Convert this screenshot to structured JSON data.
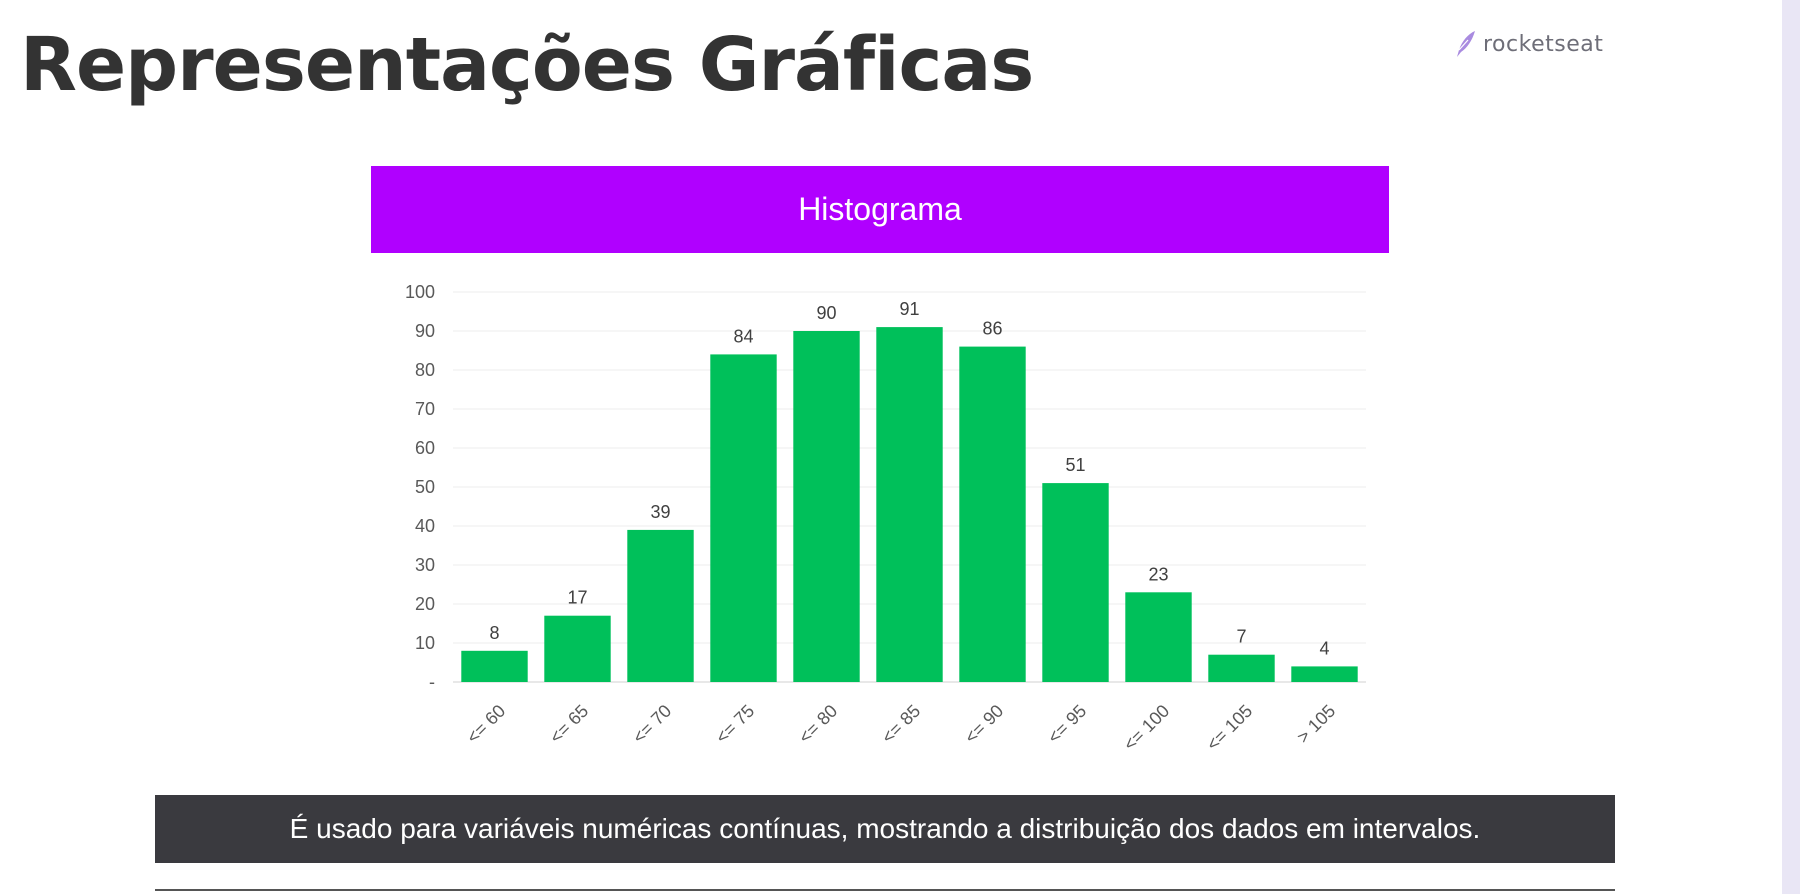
{
  "slide": {
    "title": "Representações Gráficas",
    "brand": "rocketseat",
    "caption": "É usado para variáveis numéricas contínuas, mostrando a distribuição dos dados em intervalos."
  },
  "colors": {
    "banner": "#b000ff",
    "bar": "#00c05a",
    "caption_bg": "#3a3a3f",
    "title": "#333333",
    "brand_icon": "#a98be0"
  },
  "icons": {
    "brand": "rocket-feather-icon"
  },
  "chart_data": {
    "type": "bar",
    "title": "Histograma",
    "categories": [
      "<= 60",
      "<= 65",
      "<= 70",
      "<= 75",
      "<= 80",
      "<= 85",
      "<= 90",
      "<= 95",
      "<= 100",
      "<= 105",
      "> 105"
    ],
    "values": [
      8,
      17,
      39,
      84,
      90,
      91,
      86,
      51,
      23,
      7,
      4
    ],
    "data_labels": [
      "8",
      "17",
      "39",
      "84",
      "90",
      "91",
      "86",
      "51",
      "23",
      "7",
      "4"
    ],
    "ylim": [
      0,
      100
    ],
    "yticks": [
      0,
      10,
      20,
      30,
      40,
      50,
      60,
      70,
      80,
      90,
      100
    ],
    "ytick_labels": [
      "-",
      "10",
      "20",
      "30",
      "40",
      "50",
      "60",
      "70",
      "80",
      "90",
      "100"
    ],
    "grid": true,
    "legend": "none",
    "xlabel": "",
    "ylabel": ""
  }
}
